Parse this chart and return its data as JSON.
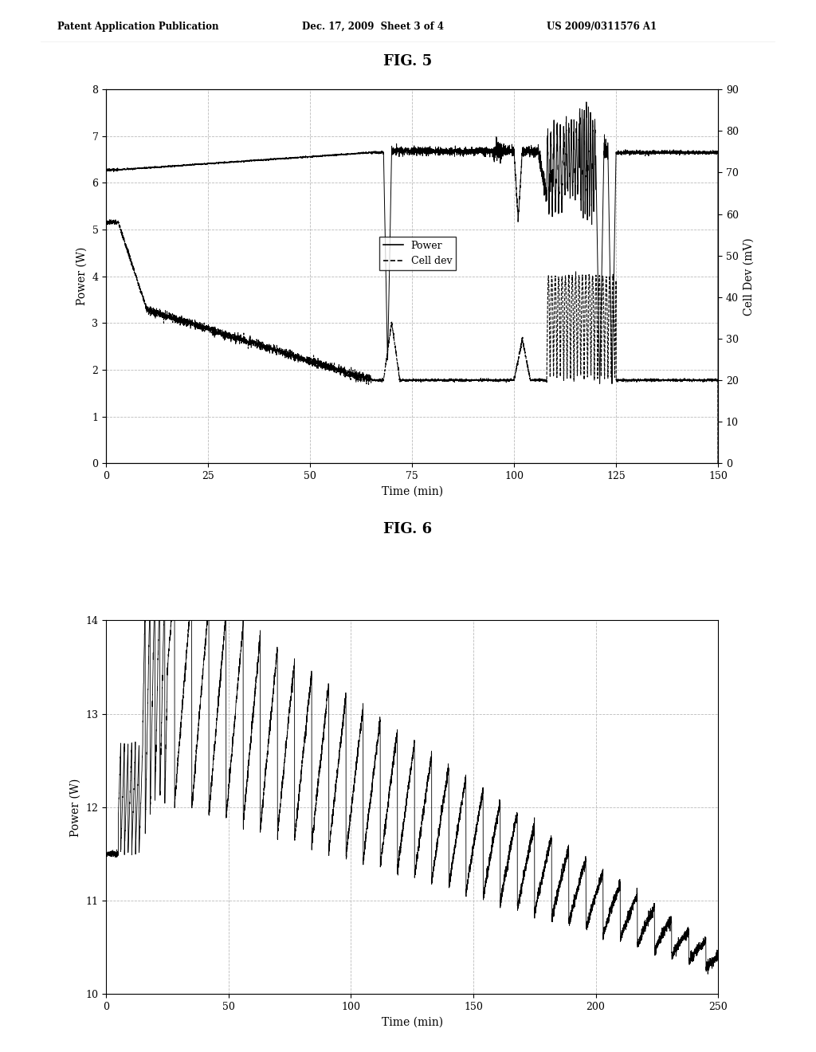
{
  "fig5_title": "FIG. 5",
  "fig6_title": "FIG. 6",
  "header_left": "Patent Application Publication",
  "header_center": "Dec. 17, 2009  Sheet 3 of 4",
  "header_right": "US 2009/0311576 A1",
  "fig5": {
    "xlim": [
      0,
      150
    ],
    "ylim_left": [
      0,
      8
    ],
    "ylim_right": [
      0,
      90
    ],
    "xticks": [
      0,
      25,
      50,
      75,
      100,
      125,
      150
    ],
    "yticks_left": [
      0,
      1,
      2,
      3,
      4,
      5,
      6,
      7,
      8
    ],
    "yticks_right": [
      0,
      10,
      20,
      30,
      40,
      50,
      60,
      70,
      80,
      90
    ],
    "xlabel": "Time (min)",
    "ylabel_left": "Power (W)",
    "ylabel_right": "Cell Dev (mV)",
    "legend_power": "Power",
    "legend_celldev": "Cell dev",
    "grid_color": "#bbbbbb",
    "grid_style": "--"
  },
  "fig6": {
    "xlim": [
      0,
      250
    ],
    "ylim": [
      10,
      14
    ],
    "xticks": [
      0,
      50,
      100,
      150,
      200,
      250
    ],
    "yticks": [
      10,
      11,
      12,
      13,
      14
    ],
    "xlabel": "Time (min)",
    "ylabel": "Power (W)",
    "grid_color": "#bbbbbb",
    "grid_style": "--"
  },
  "background_color": "#ffffff",
  "line_color": "#000000"
}
